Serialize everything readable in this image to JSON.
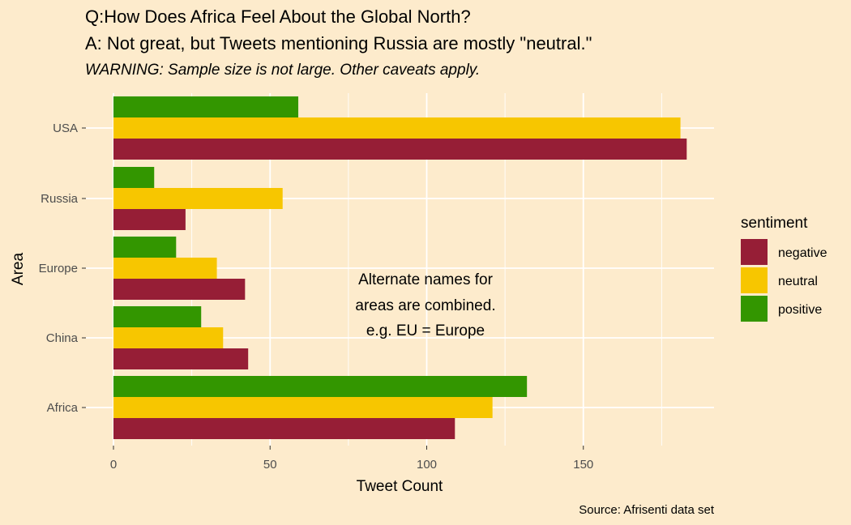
{
  "chart_data": {
    "type": "bar",
    "orientation": "horizontal",
    "title_line1": "Q:How Does Africa Feel About the Global North?",
    "title_line2": "A: Not great, but Tweets mentioning Russia are mostly \"neutral.\"",
    "subtitle": "WARNING: Sample size is not large. Other caveats apply.",
    "xlabel": "Tweet Count",
    "ylabel": "Area",
    "xlim": [
      0,
      192
    ],
    "xticks": [
      0,
      50,
      100,
      150
    ],
    "categories": [
      "Africa",
      "China",
      "Europe",
      "Russia",
      "USA"
    ],
    "series": [
      {
        "name": "negative",
        "color": "#961e36",
        "values": [
          109,
          43,
          42,
          23,
          183
        ]
      },
      {
        "name": "neutral",
        "color": "#f7c600",
        "values": [
          121,
          35,
          33,
          54,
          181
        ]
      },
      {
        "name": "positive",
        "color": "#339600",
        "values": [
          132,
          28,
          20,
          13,
          59
        ]
      }
    ],
    "legend_title": "sentiment",
    "legend_position": "right",
    "grid": true,
    "annotation": [
      "Alternate names for",
      "areas are combined.",
      "e.g. EU = Europe"
    ],
    "caption": "Source: Afrisenti data set"
  }
}
